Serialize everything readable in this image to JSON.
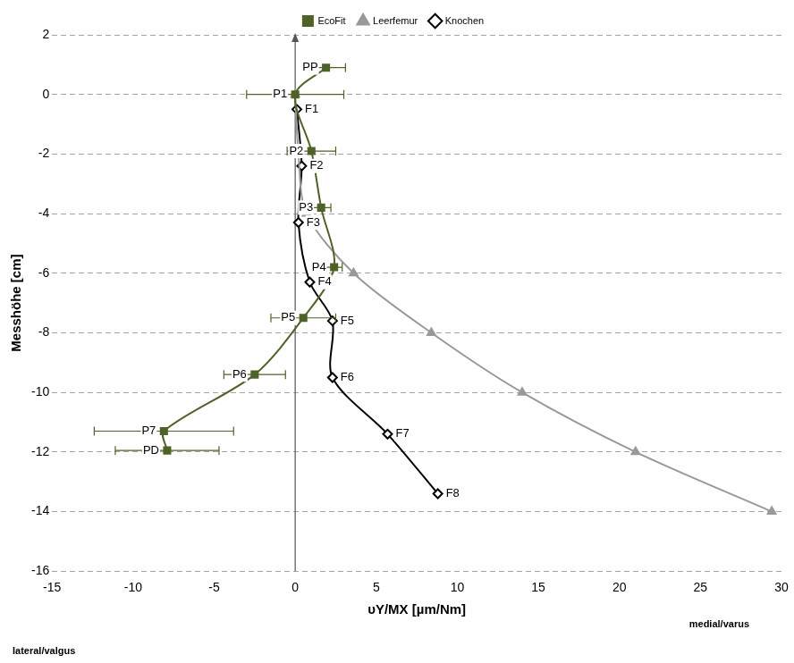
{
  "chart_data": {
    "type": "line",
    "x_label": "υY/MX [µm/Nm]",
    "y_label": "Messhöhe [cm]",
    "side_labels": [
      "lateral/valgus",
      "medial/varus"
    ],
    "xlim": [
      -15,
      30
    ],
    "xticks": [
      -15,
      -10,
      -5,
      0,
      5,
      10,
      15,
      20,
      25,
      30
    ],
    "ylim": [
      -16,
      2
    ],
    "yticks": [
      -16,
      -14,
      -12,
      -10,
      -8,
      -6,
      -4,
      -2,
      0,
      2
    ],
    "grid": true,
    "legend": "top",
    "series": [
      {
        "name": "EcoFit",
        "color": "#4f6228",
        "marker": "square",
        "x": [
          1.9,
          0,
          1.0,
          1.6,
          2.4,
          0.5,
          -2.5,
          -8.1,
          -7.9
        ],
        "values": [
          0.9,
          0,
          -1.9,
          -3.8,
          -5.8,
          -7.5,
          -9.4,
          -11.3,
          -11.95
        ],
        "point_labels": [
          "PP",
          "P1",
          "P2",
          "P3",
          "P4",
          "P5",
          "P6",
          "P7",
          "PD"
        ],
        "x_errors": [
          1.2,
          3.0,
          1.5,
          0.6,
          0.5,
          2.0,
          1.9,
          4.3,
          3.2
        ]
      },
      {
        "name": "Leerfemur",
        "color": "#999999",
        "marker": "triangle",
        "x": [
          0,
          0.2,
          0.7,
          3.6,
          8.4,
          14.0,
          21.0,
          29.4
        ],
        "values": [
          0,
          -2,
          -4,
          -6,
          -8,
          -10,
          -12,
          -14
        ]
      },
      {
        "name": "Knochen",
        "color": "#000000",
        "marker": "diamond",
        "x": [
          0.1,
          0.4,
          0.2,
          0.9,
          2.3,
          2.3,
          5.7,
          8.8
        ],
        "values": [
          -0.5,
          -2.4,
          -4.3,
          -6.3,
          -7.6,
          -9.5,
          -11.4,
          -13.4
        ],
        "point_labels": [
          "F1",
          "F2",
          "F3",
          "F4",
          "F5",
          "F6",
          "F7",
          "F8"
        ]
      }
    ]
  }
}
